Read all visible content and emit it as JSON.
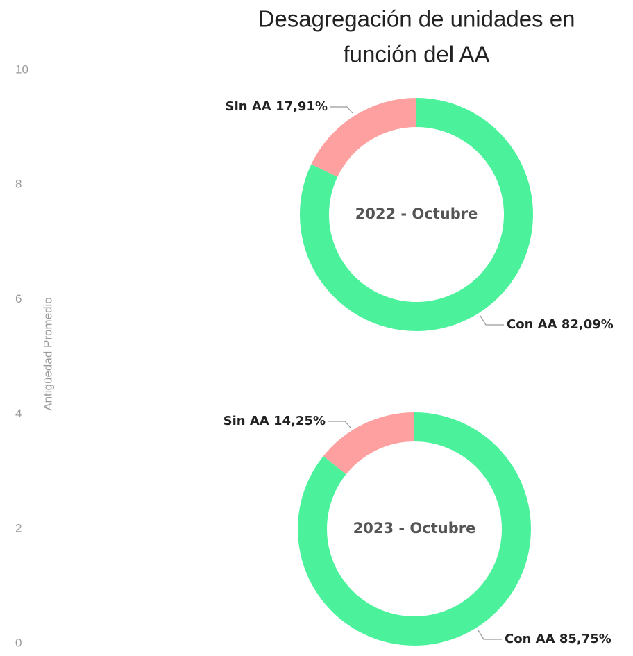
{
  "title_lines": [
    "Desagregación de unidades en",
    "función del AA"
  ],
  "axis": {
    "label": "Antigüedad Promedio",
    "ylim": [
      0,
      10
    ],
    "yticks": [
      0,
      2,
      4,
      6,
      8,
      10
    ]
  },
  "chart_data": [
    {
      "type": "pie",
      "donut": true,
      "center_label": "2022 - Octubre",
      "categories": [
        "Con AA",
        "Sin AA"
      ],
      "values": [
        82.09,
        17.91
      ],
      "value_labels": [
        "82,09%",
        "17,91%"
      ],
      "colors": [
        "#4cf29b",
        "#fda09f"
      ]
    },
    {
      "type": "pie",
      "donut": true,
      "center_label": "2023 - Octubre",
      "categories": [
        "Con AA",
        "Sin AA"
      ],
      "values": [
        85.75,
        14.25
      ],
      "value_labels": [
        "85,75%",
        "14,25%"
      ],
      "colors": [
        "#4cf29b",
        "#fda09f"
      ]
    }
  ]
}
